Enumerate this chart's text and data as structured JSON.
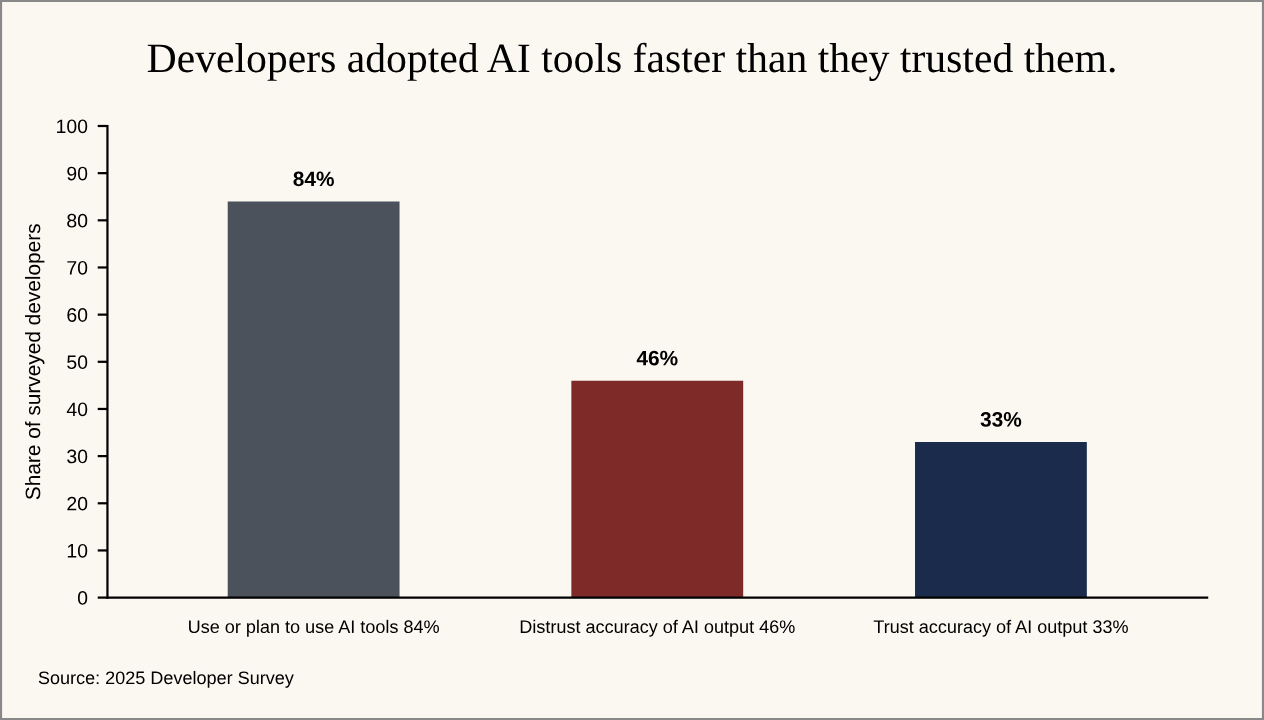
{
  "chart_data": {
    "type": "bar",
    "title": "Developers adopted AI tools faster than they trusted them.",
    "ylabel": "Share of surveyed developers",
    "categories": [
      "Use or plan to use AI tools 84%",
      "Distrust accuracy of AI output 46%",
      "Trust accuracy of AI output 33%"
    ],
    "values": [
      84,
      46,
      33
    ],
    "colors": [
      "#4b525b",
      "#7e2a29",
      "#1b2b4b"
    ],
    "value_labels": [
      "84%",
      "46%",
      "33%"
    ],
    "ylim": [
      0,
      100
    ],
    "yticks": [
      0,
      10,
      20,
      30,
      40,
      50,
      60,
      70,
      80,
      90,
      100
    ],
    "grid": false,
    "legend": false,
    "annotations": [
      "Source: 2025 Developer Survey"
    ]
  }
}
